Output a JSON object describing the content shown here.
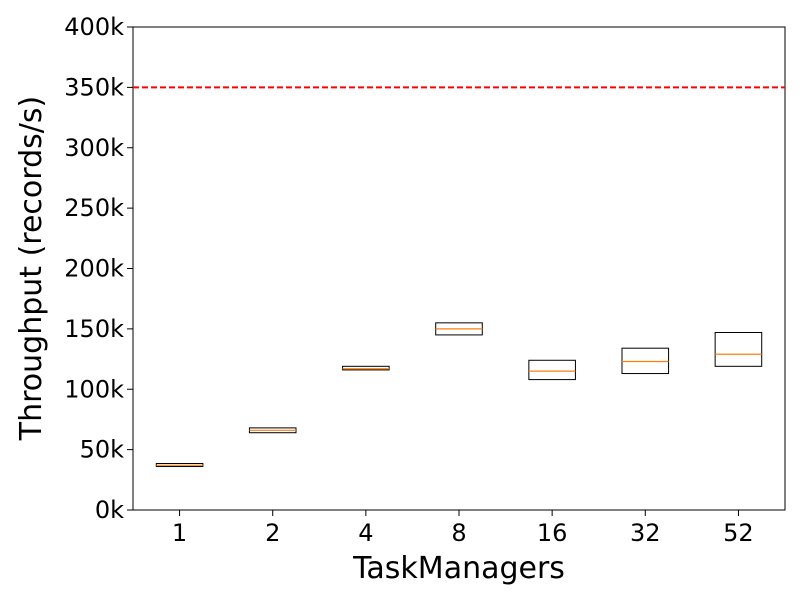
{
  "chart_data": {
    "type": "box",
    "title": "",
    "xlabel": "TaskManagers",
    "ylabel": "Throughput (records/s)",
    "ylim": [
      0,
      400000
    ],
    "yticks": [
      0,
      50000,
      100000,
      150000,
      200000,
      250000,
      300000,
      350000,
      400000
    ],
    "ytick_labels": [
      "0k",
      "50k",
      "100k",
      "150k",
      "200k",
      "250k",
      "300k",
      "350k",
      "400k"
    ],
    "categories": [
      "1",
      "2",
      "4",
      "8",
      "16",
      "32",
      "52"
    ],
    "boxes": [
      {
        "q1": 36000,
        "median": 37000,
        "q3": 38500,
        "whisker_low": 36000,
        "whisker_high": 38500
      },
      {
        "q1": 64000,
        "median": 66000,
        "q3": 68000,
        "whisker_low": 64000,
        "whisker_high": 68000
      },
      {
        "q1": 116000,
        "median": 117000,
        "q3": 119000,
        "whisker_low": 116000,
        "whisker_high": 119000
      },
      {
        "q1": 145000,
        "median": 150000,
        "q3": 155000,
        "whisker_low": 145000,
        "whisker_high": 155000
      },
      {
        "q1": 108000,
        "median": 115000,
        "q3": 124000,
        "whisker_low": 108000,
        "whisker_high": 124000
      },
      {
        "q1": 113000,
        "median": 123000,
        "q3": 134000,
        "whisker_low": 113000,
        "whisker_high": 134000
      },
      {
        "q1": 119000,
        "median": 129000,
        "q3": 147000,
        "whisker_low": 119000,
        "whisker_high": 147000
      }
    ],
    "reference_line": {
      "y": 350000,
      "style": "dashed",
      "color": "#ff0000"
    },
    "box_color": "#000000",
    "median_color": "#ff7f0e",
    "grid": false,
    "legend": "none"
  }
}
